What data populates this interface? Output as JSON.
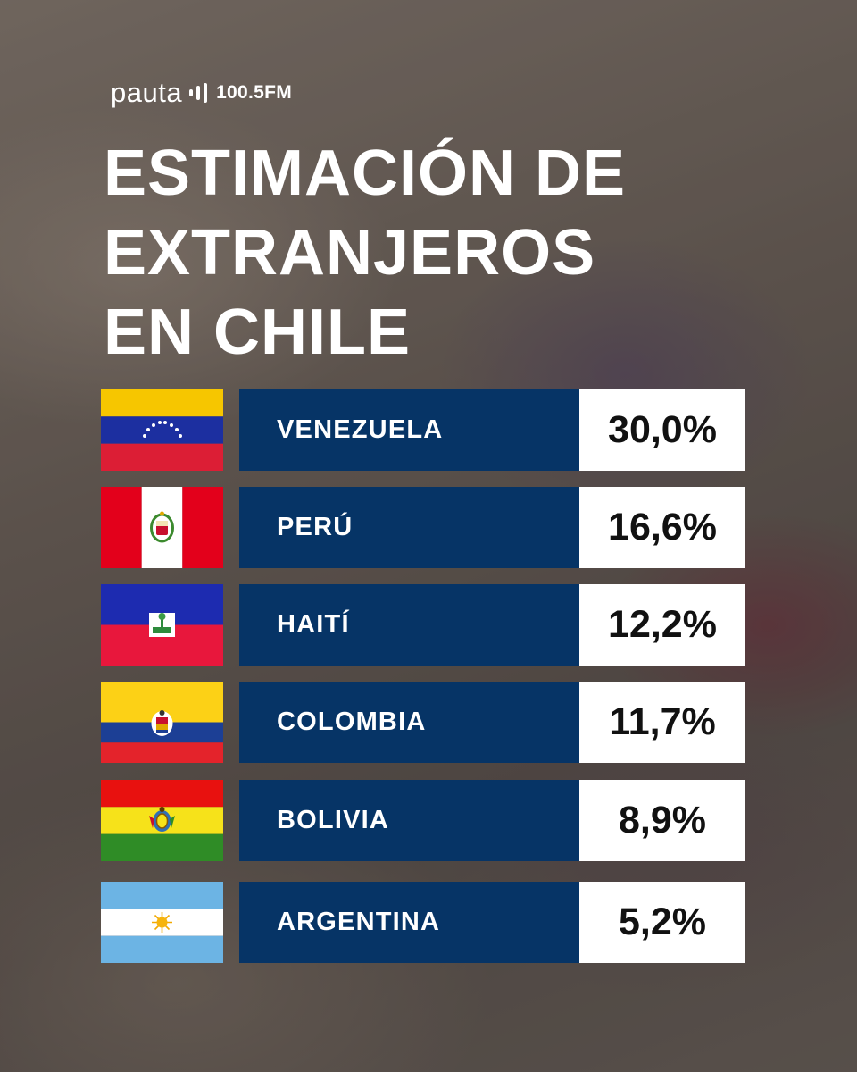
{
  "brand": {
    "name": "pauta",
    "frequency": "100.5FM"
  },
  "title_lines": [
    "ESTIMACIÓN DE",
    "EXTRANJEROS",
    "EN CHILE"
  ],
  "colors": {
    "name_box": "#063466",
    "value_box": "#ffffff",
    "value_text": "#111111",
    "title_text": "#ffffff"
  },
  "countries": [
    {
      "name": "VENEZUELA",
      "value": "30,0%",
      "flag_icon": "venezuela-flag-icon"
    },
    {
      "name": "PERÚ",
      "value": "16,6%",
      "flag_icon": "peru-flag-icon"
    },
    {
      "name": "HAITÍ",
      "value": "12,2%",
      "flag_icon": "haiti-flag-icon"
    },
    {
      "name": "COLOMBIA",
      "value": "11,7%",
      "flag_icon": "colombia-flag-icon"
    },
    {
      "name": "BOLIVIA",
      "value": "8,9%",
      "flag_icon": "bolivia-flag-icon"
    },
    {
      "name": "ARGENTINA",
      "value": "5,2%",
      "flag_icon": "argentina-flag-icon"
    }
  ]
}
